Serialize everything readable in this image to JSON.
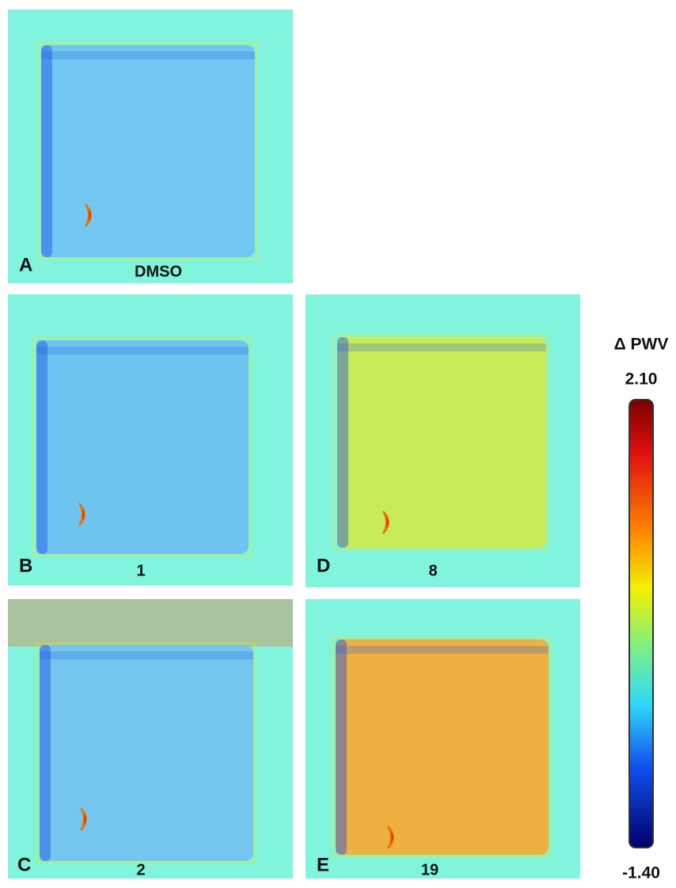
{
  "panels": [
    {
      "letter": "A",
      "caption": "DMSO"
    },
    {
      "letter": "B",
      "caption": "1"
    },
    {
      "letter": "C",
      "caption": "2"
    },
    {
      "letter": "D",
      "caption": "8"
    },
    {
      "letter": "E",
      "caption": "19"
    }
  ],
  "colorbar": {
    "title": "Δ PWV",
    "max_label": "2.10",
    "min_label": "-1.40"
  }
}
